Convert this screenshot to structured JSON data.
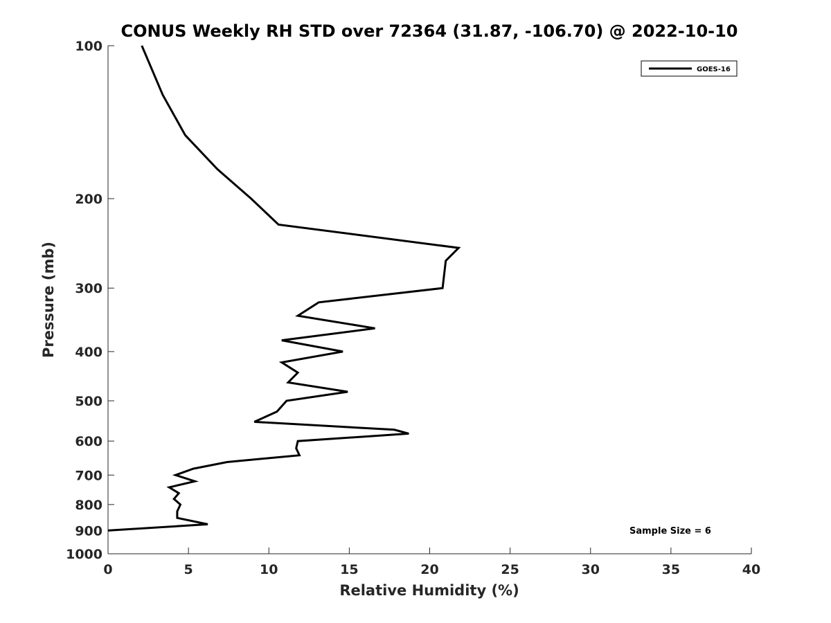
{
  "chart_data": {
    "type": "line",
    "title": "CONUS Weekly RH STD over 72364 (31.87, -106.70) @ 2022-10-10",
    "xlabel": "Relative Humidity (%)",
    "ylabel": "Pressure (mb)",
    "xlim": [
      0,
      40
    ],
    "ylim": [
      1000,
      100
    ],
    "yscale": "log",
    "y_reversed": true,
    "grid": false,
    "legend_position": "top-right",
    "x_ticks": [
      "0",
      "5",
      "10",
      "15",
      "20",
      "25",
      "30",
      "35",
      "40"
    ],
    "y_ticks": [
      "100",
      "200",
      "300",
      "400",
      "500",
      "600",
      "700",
      "800",
      "900",
      "1000"
    ],
    "annotation": "Sample Size = 6",
    "series": [
      {
        "name": "GOES-16",
        "color": "#000000",
        "x": [
          2.1,
          3.4,
          4.8,
          6.8,
          8.9,
          10.6,
          21.8,
          21.0,
          20.8,
          13.1,
          11.8,
          16.6,
          10.8,
          14.6,
          10.8,
          11.8,
          11.2,
          14.9,
          11.1,
          10.5,
          9.1,
          17.8,
          18.7,
          11.8,
          11.7,
          11.9,
          7.4,
          5.3,
          4.2,
          5.4,
          3.8,
          4.4,
          4.1,
          4.5,
          4.3,
          4.3,
          6.2,
          0.0
        ],
        "y": [
          100,
          125,
          150,
          175,
          200,
          225,
          250,
          265,
          300,
          320,
          340,
          360,
          380,
          400,
          420,
          440,
          460,
          480,
          500,
          525,
          550,
          570,
          580,
          600,
          620,
          640,
          660,
          680,
          700,
          720,
          740,
          760,
          780,
          800,
          825,
          850,
          875,
          900
        ]
      }
    ]
  }
}
